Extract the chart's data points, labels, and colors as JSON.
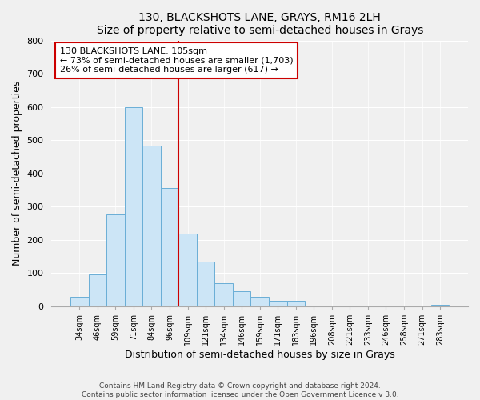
{
  "title1": "130, BLACKSHOTS LANE, GRAYS, RM16 2LH",
  "title2": "Size of property relative to semi-detached houses in Grays",
  "xlabel": "Distribution of semi-detached houses by size in Grays",
  "ylabel": "Number of semi-detached properties",
  "footer1": "Contains HM Land Registry data © Crown copyright and database right 2024.",
  "footer2": "Contains public sector information licensed under the Open Government Licence v 3.0.",
  "bar_labels": [
    "34sqm",
    "46sqm",
    "59sqm",
    "71sqm",
    "84sqm",
    "96sqm",
    "109sqm",
    "121sqm",
    "134sqm",
    "146sqm",
    "159sqm",
    "171sqm",
    "183sqm",
    "196sqm",
    "208sqm",
    "221sqm",
    "233sqm",
    "246sqm",
    "258sqm",
    "271sqm",
    "283sqm"
  ],
  "bar_heights": [
    30,
    97,
    277,
    600,
    483,
    355,
    218,
    136,
    70,
    45,
    28,
    16,
    17,
    0,
    0,
    0,
    0,
    0,
    0,
    0,
    5
  ],
  "bar_color": "#cce5f6",
  "bar_edge_color": "#6aaed6",
  "vline_color": "#cc0000",
  "annotation_title": "130 BLACKSHOTS LANE: 105sqm",
  "annotation_line1": "← 73% of semi-detached houses are smaller (1,703)",
  "annotation_line2": "26% of semi-detached houses are larger (617) →",
  "annotation_box_color": "#ffffff",
  "annotation_box_edge": "#cc0000",
  "ylim": [
    0,
    800
  ],
  "yticks": [
    0,
    100,
    200,
    300,
    400,
    500,
    600,
    700,
    800
  ],
  "figsize": [
    6.0,
    5.0
  ],
  "dpi": 100,
  "bg_color": "#f0f0f0"
}
